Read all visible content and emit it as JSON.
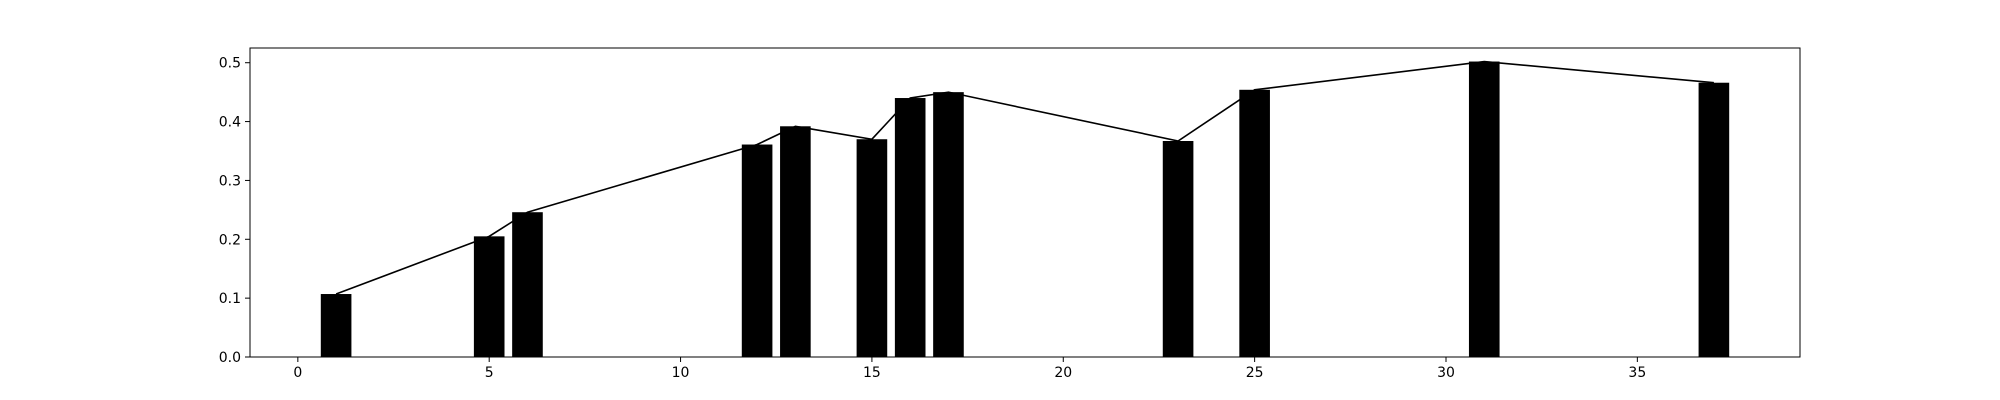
{
  "chart_data": {
    "type": "bar",
    "title": "",
    "xlabel": "",
    "ylabel": "",
    "xlim": [
      -1.25,
      39.25
    ],
    "ylim": [
      0,
      0.525
    ],
    "grid": false,
    "legend": "none",
    "x_ticks": [
      0,
      5,
      10,
      15,
      20,
      25,
      30,
      35
    ],
    "y_ticks": [
      0.0,
      0.1,
      0.2,
      0.3,
      0.4,
      0.5
    ],
    "y_tick_labels": [
      "0.0",
      "0.1",
      "0.2",
      "0.3",
      "0.4",
      "0.5"
    ],
    "bar_width": 0.8,
    "x": [
      1,
      5,
      6,
      12,
      13,
      15,
      16,
      17,
      23,
      25,
      31,
      37
    ],
    "values": [
      0.107,
      0.205,
      0.246,
      0.361,
      0.392,
      0.37,
      0.44,
      0.45,
      0.367,
      0.454,
      0.502,
      0.466
    ],
    "line_overlay": true,
    "colors": {
      "bars": "#000000",
      "line": "#000000",
      "axes": "#000000"
    }
  }
}
